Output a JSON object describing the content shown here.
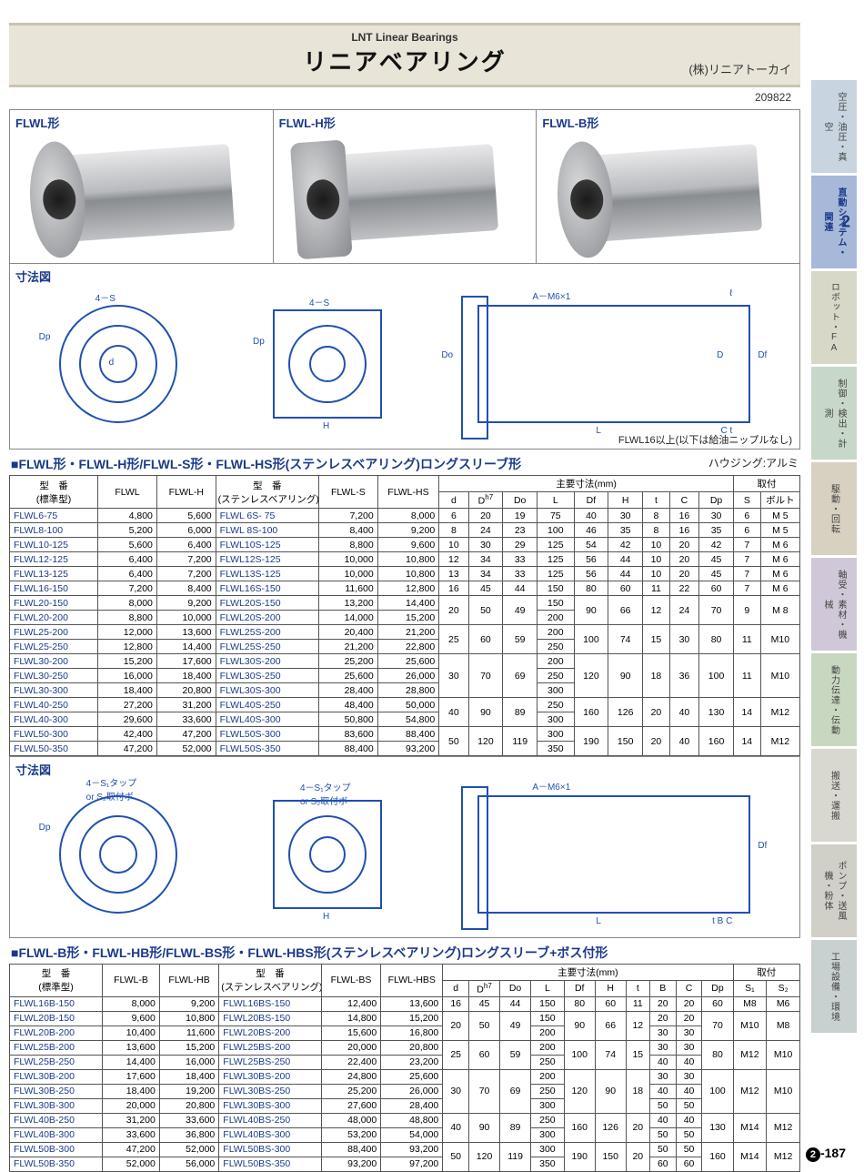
{
  "header": {
    "subtitle": "LNT Linear Bearings",
    "title": "リニアベアリング",
    "company": "(株)リニアトーカイ",
    "code": "209822"
  },
  "products": {
    "p1": "FLWL形",
    "p2": "FLWL-H形",
    "p3": "FLWL-B形"
  },
  "diagram": {
    "label": "寸法図",
    "anno_4s": "4－S",
    "anno_dp": "Dp",
    "anno_d": "d",
    "anno_h": "H",
    "anno_am6": "A－M6×1",
    "anno_l": "L",
    "anno_ll": "ℓ",
    "anno_df": "Df",
    "anno_do": "Do",
    "anno_d2": "D",
    "anno_c": "C",
    "anno_t": "t",
    "anno_4s1": "4－S₁タップ\nor S₂取付ボ",
    "anno_b": "B",
    "note": "FLWL16以上(以下は給油ニップルなし)"
  },
  "section1": {
    "title": "■FLWL形・FLWL-H形/FLWL-S形・FLWL-HS形(ステンレスベアリング)ロングスリーブ形",
    "housing": "ハウジング:アルミ",
    "headers": {
      "model_std": "型　番\n(標準型)",
      "flwl": "FLWL",
      "flwl_h": "FLWL-H",
      "model_ss": "型　番\n(ステンレスベアリング)",
      "flwl_s": "FLWL-S",
      "flwl_hs": "FLWL-HS",
      "main_dim": "主要寸法(mm)",
      "mount": "取付",
      "d": "d",
      "dh7": "D",
      "do": "Do",
      "l": "L",
      "df": "Df",
      "h": "H",
      "t": "t",
      "c": "C",
      "dp": "Dp",
      "s": "S",
      "bolt": "ボルト"
    }
  },
  "section2": {
    "title": "■FLWL-B形・FLWL-HB形/FLWL-BS形・FLWL-HBS形(ステンレスベアリング)ロングスリーブ+ボス付形",
    "headers": {
      "model_std": "型　番\n(標準型)",
      "flwl_b": "FLWL-B",
      "flwl_hb": "FLWL-HB",
      "model_ss": "型　番\n(ステンレスベアリング)",
      "flwl_bs": "FLWL-BS",
      "flwl_hbs": "FLWL-HBS",
      "main_dim": "主要寸法(mm)",
      "mount": "取付",
      "d": "d",
      "dh7": "D",
      "do": "Do",
      "l": "L",
      "df": "Df",
      "h": "H",
      "t": "t",
      "b": "B",
      "c": "C",
      "dp": "Dp",
      "s1": "S₁",
      "s2": "S₂"
    }
  },
  "table1": {
    "cols": {
      "model_std": 72,
      "p1": 48,
      "p2": 48,
      "model_ss": 84,
      "p3": 48,
      "p4": 50,
      "d": 24,
      "dh7": 28,
      "do": 28,
      "l": 30,
      "df": 28,
      "h": 28,
      "t": 22,
      "c": 24,
      "dp": 28,
      "s": 22,
      "bolt": 32
    },
    "rows": [
      {
        "m": "FLWL6-75",
        "p1": "4,800",
        "p2": "5,600",
        "ms": "FLWL 6S- 75",
        "p3": "7,200",
        "p4": "8,000",
        "d": "6",
        "dh": "20",
        "do": "19",
        "l": "75",
        "df": "40",
        "h": "30",
        "t": "8",
        "c": "16",
        "dp": "30",
        "s": "6",
        "b": "M 5",
        "rs": 1
      },
      {
        "m": "FLWL8-100",
        "p1": "5,200",
        "p2": "6,000",
        "ms": "FLWL 8S-100",
        "p3": "8,400",
        "p4": "9,200",
        "d": "8",
        "dh": "24",
        "do": "23",
        "l": "100",
        "df": "46",
        "h": "35",
        "t": "8",
        "c": "16",
        "dp": "35",
        "s": "6",
        "b": "M 5",
        "rs": 1
      },
      {
        "m": "FLWL10-125",
        "p1": "5,600",
        "p2": "6,400",
        "ms": "FLWL10S-125",
        "p3": "8,800",
        "p4": "9,600",
        "d": "10",
        "dh": "30",
        "do": "29",
        "l": "125",
        "df": "54",
        "h": "42",
        "t": "10",
        "c": "20",
        "dp": "42",
        "s": "7",
        "b": "M 6",
        "rs": 1
      },
      {
        "m": "FLWL12-125",
        "p1": "6,400",
        "p2": "7,200",
        "ms": "FLWL12S-125",
        "p3": "10,000",
        "p4": "10,800",
        "d": "12",
        "dh": "34",
        "do": "33",
        "l": "125",
        "df": "56",
        "h": "44",
        "t": "10",
        "c": "20",
        "dp": "45",
        "s": "7",
        "b": "M 6",
        "rs": 1
      },
      {
        "m": "FLWL13-125",
        "p1": "6,400",
        "p2": "7,200",
        "ms": "FLWL13S-125",
        "p3": "10,000",
        "p4": "10,800",
        "d": "13",
        "dh": "34",
        "do": "33",
        "l": "125",
        "df": "56",
        "h": "44",
        "t": "10",
        "c": "20",
        "dp": "45",
        "s": "7",
        "b": "M 6",
        "rs": 1
      },
      {
        "m": "FLWL16-150",
        "p1": "7,200",
        "p2": "8,400",
        "ms": "FLWL16S-150",
        "p3": "11,600",
        "p4": "12,800",
        "d": "16",
        "dh": "45",
        "do": "44",
        "l": "150",
        "df": "80",
        "h": "60",
        "t": "11",
        "c": "22",
        "dp": "60",
        "s": "7",
        "b": "M 6",
        "rs": 1
      },
      {
        "m": "FLWL20-150",
        "p1": "8,000",
        "p2": "9,200",
        "ms": "FLWL20S-150",
        "p3": "13,200",
        "p4": "14,400",
        "d": "20",
        "dh": "50",
        "do": "49",
        "l": "150",
        "df": "90",
        "h": "66",
        "t": "12",
        "c": "24",
        "dp": "70",
        "s": "9",
        "b": "M 8",
        "rs": 2
      },
      {
        "m": "FLWL20-200",
        "p1": "8,800",
        "p2": "10,000",
        "ms": "FLWL20S-200",
        "p3": "14,000",
        "p4": "15,200",
        "l": "200"
      },
      {
        "m": "FLWL25-200",
        "p1": "12,000",
        "p2": "13,600",
        "ms": "FLWL25S-200",
        "p3": "20,400",
        "p4": "21,200",
        "d": "25",
        "dh": "60",
        "do": "59",
        "l": "200",
        "df": "100",
        "h": "74",
        "t": "15",
        "c": "30",
        "dp": "80",
        "s": "11",
        "b": "M10",
        "rs": 2
      },
      {
        "m": "FLWL25-250",
        "p1": "12,800",
        "p2": "14,400",
        "ms": "FLWL25S-250",
        "p3": "21,200",
        "p4": "22,800",
        "l": "250"
      },
      {
        "m": "FLWL30-200",
        "p1": "15,200",
        "p2": "17,600",
        "ms": "FLWL30S-200",
        "p3": "25,200",
        "p4": "25,600",
        "d": "30",
        "dh": "70",
        "do": "69",
        "l": "200",
        "df": "120",
        "h": "90",
        "t": "18",
        "c": "36",
        "dp": "100",
        "s": "11",
        "b": "M10",
        "rs": 3
      },
      {
        "m": "FLWL30-250",
        "p1": "16,000",
        "p2": "18,400",
        "ms": "FLWL30S-250",
        "p3": "25,600",
        "p4": "26,000",
        "l": "250"
      },
      {
        "m": "FLWL30-300",
        "p1": "18,400",
        "p2": "20,800",
        "ms": "FLWL30S-300",
        "p3": "28,400",
        "p4": "28,800",
        "l": "300"
      },
      {
        "m": "FLWL40-250",
        "p1": "27,200",
        "p2": "31,200",
        "ms": "FLWL40S-250",
        "p3": "48,400",
        "p4": "50,000",
        "d": "40",
        "dh": "90",
        "do": "89",
        "l": "250",
        "df": "160",
        "h": "126",
        "t": "20",
        "c": "40",
        "dp": "130",
        "s": "14",
        "b": "M12",
        "rs": 2
      },
      {
        "m": "FLWL40-300",
        "p1": "29,600",
        "p2": "33,600",
        "ms": "FLWL40S-300",
        "p3": "50,800",
        "p4": "54,800",
        "l": "300"
      },
      {
        "m": "FLWL50-300",
        "p1": "42,400",
        "p2": "47,200",
        "ms": "FLWL50S-300",
        "p3": "83,600",
        "p4": "88,400",
        "d": "50",
        "dh": "120",
        "do": "119",
        "l": "300",
        "df": "190",
        "h": "150",
        "t": "20",
        "c": "40",
        "dp": "160",
        "s": "14",
        "b": "M12",
        "rs": 2
      },
      {
        "m": "FLWL50-350",
        "p1": "47,200",
        "p2": "52,000",
        "ms": "FLWL50S-350",
        "p3": "88,400",
        "p4": "93,200",
        "l": "350"
      }
    ]
  },
  "table2": {
    "cols": {
      "model_std": 78,
      "p1": 48,
      "p2": 50,
      "model_ss": 86,
      "p3": 50,
      "p4": 52,
      "d": 22,
      "dh7": 26,
      "do": 26,
      "l": 28,
      "df": 26,
      "h": 26,
      "t": 20,
      "b": 22,
      "c": 22,
      "dp": 26,
      "s1": 28,
      "s2": 28
    },
    "rows": [
      {
        "m": "FLWL16B-150",
        "p1": "8,000",
        "p2": "9,200",
        "ms": "FLWL16BS-150",
        "p3": "12,400",
        "p4": "13,600",
        "d": "16",
        "dh": "45",
        "do": "44",
        "l": "150",
        "df": "80",
        "h": "60",
        "t": "11",
        "bb": "20",
        "c": "20",
        "dp": "60",
        "s1": "M8",
        "s2": "M6",
        "rs": 1
      },
      {
        "m": "FLWL20B-150",
        "p1": "9,600",
        "p2": "10,800",
        "ms": "FLWL20BS-150",
        "p3": "14,800",
        "p4": "15,200",
        "d": "20",
        "dh": "50",
        "do": "49",
        "l": "150",
        "df": "90",
        "h": "66",
        "t": "12",
        "bb": "20",
        "c": "20",
        "dp": "70",
        "s1": "M10",
        "s2": "M8",
        "rs": 2
      },
      {
        "m": "FLWL20B-200",
        "p1": "10,400",
        "p2": "11,600",
        "ms": "FLWL20BS-200",
        "p3": "15,600",
        "p4": "16,800",
        "l": "200",
        "bb": "30",
        "c": "30"
      },
      {
        "m": "FLWL25B-200",
        "p1": "13,600",
        "p2": "15,200",
        "ms": "FLWL25BS-200",
        "p3": "20,000",
        "p4": "20,800",
        "d": "25",
        "dh": "60",
        "do": "59",
        "l": "200",
        "df": "100",
        "h": "74",
        "t": "15",
        "bb": "30",
        "c": "30",
        "dp": "80",
        "s1": "M12",
        "s2": "M10",
        "rs": 2
      },
      {
        "m": "FLWL25B-250",
        "p1": "14,400",
        "p2": "16,000",
        "ms": "FLWL25BS-250",
        "p3": "22,400",
        "p4": "23,200",
        "l": "250",
        "bb": "40",
        "c": "40"
      },
      {
        "m": "FLWL30B-200",
        "p1": "17,600",
        "p2": "18,400",
        "ms": "FLWL30BS-200",
        "p3": "24,800",
        "p4": "25,600",
        "d": "30",
        "dh": "70",
        "do": "69",
        "l": "200",
        "df": "120",
        "h": "90",
        "t": "18",
        "bb": "30",
        "c": "30",
        "dp": "100",
        "s1": "M12",
        "s2": "M10",
        "rs": 3
      },
      {
        "m": "FLWL30B-250",
        "p1": "18,400",
        "p2": "19,200",
        "ms": "FLWL30BS-250",
        "p3": "25,200",
        "p4": "26,000",
        "l": "250",
        "bb": "40",
        "c": "40"
      },
      {
        "m": "FLWL30B-300",
        "p1": "20,000",
        "p2": "20,800",
        "ms": "FLWL30BS-300",
        "p3": "27,600",
        "p4": "28,400",
        "l": "300",
        "bb": "50",
        "c": "50"
      },
      {
        "m": "FLWL40B-250",
        "p1": "31,200",
        "p2": "33,600",
        "ms": "FLWL40BS-250",
        "p3": "48,000",
        "p4": "48,800",
        "d": "40",
        "dh": "90",
        "do": "89",
        "l": "250",
        "df": "160",
        "h": "126",
        "t": "20",
        "bb": "40",
        "c": "40",
        "dp": "130",
        "s1": "M14",
        "s2": "M12",
        "rs": 2
      },
      {
        "m": "FLWL40B-300",
        "p1": "33,600",
        "p2": "36,800",
        "ms": "FLWL40BS-300",
        "p3": "53,200",
        "p4": "54,000",
        "l": "300",
        "bb": "50",
        "c": "50"
      },
      {
        "m": "FLWL50B-300",
        "p1": "47,200",
        "p2": "52,000",
        "ms": "FLWL50BS-300",
        "p3": "88,400",
        "p4": "93,200",
        "d": "50",
        "dh": "120",
        "do": "119",
        "l": "300",
        "df": "190",
        "h": "150",
        "t": "20",
        "bb": "50",
        "c": "50",
        "dp": "160",
        "s1": "M14",
        "s2": "M12",
        "rs": 2
      },
      {
        "m": "FLWL50B-350",
        "p1": "52,000",
        "p2": "56,000",
        "ms": "FLWL50BS-350",
        "p3": "93,200",
        "p4": "97,200",
        "l": "350",
        "bb": "60",
        "c": "60"
      }
    ]
  },
  "tabs": [
    {
      "label": "空圧・油圧・真空",
      "color": "#c8d4e0"
    },
    {
      "label": "直動システム・関連",
      "color": "#a8b8d8",
      "active": true,
      "num": "2"
    },
    {
      "label": "ロボット・FA",
      "color": "#d8d8c8"
    },
    {
      "label": "制御・検出・計測",
      "color": "#c8d8c8"
    },
    {
      "label": "駆動・回転",
      "color": "#d8d0c0"
    },
    {
      "label": "軸受・素材・機械",
      "color": "#d0c8d8"
    },
    {
      "label": "動力伝達・伝動",
      "color": "#c8d8c0"
    },
    {
      "label": "搬送・運搬",
      "color": "#d8d8d0"
    },
    {
      "label": "ポンプ・送風機・粉体",
      "color": "#d0d0c8"
    },
    {
      "label": "工場設備・環境",
      "color": "#c8d0d0"
    }
  ],
  "pagenum": {
    "circle": "2",
    "num": "-187"
  },
  "colors": {
    "accent": "#1a3a8a",
    "border": "#555",
    "headerbg": "#e8e4d8"
  }
}
